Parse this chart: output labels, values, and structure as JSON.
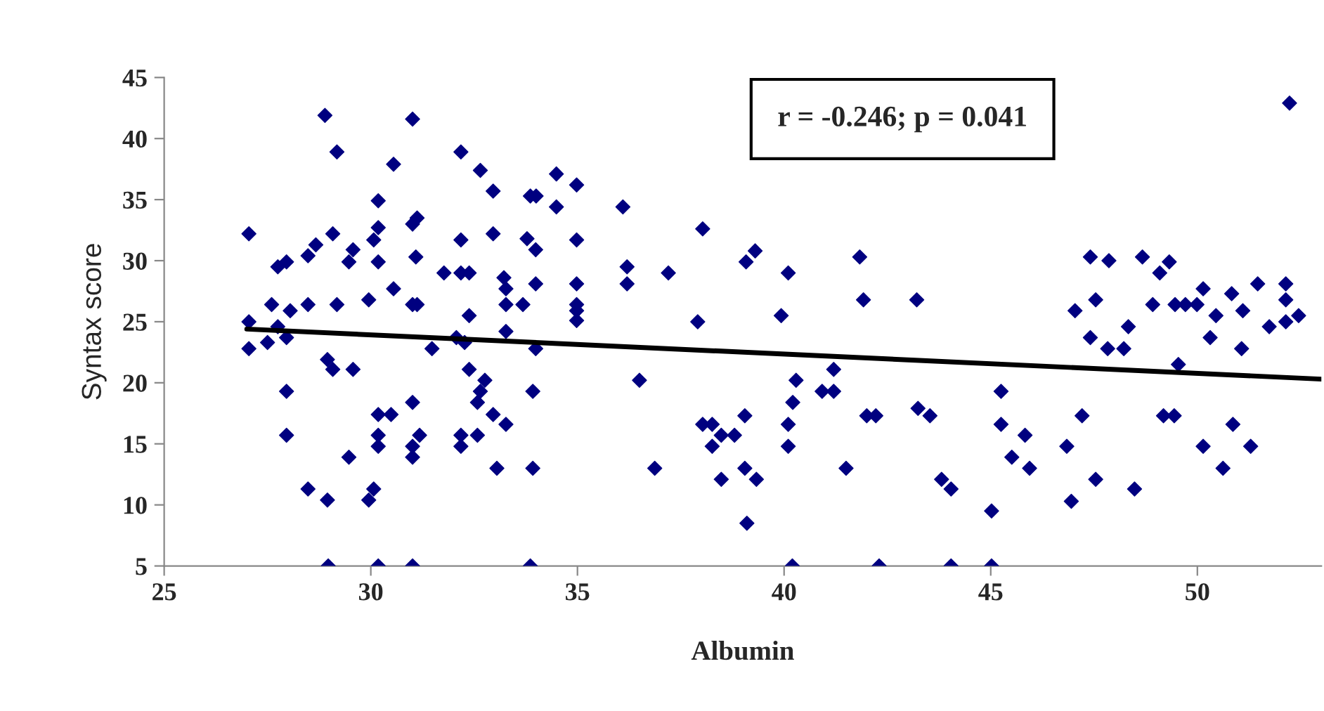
{
  "chart_data": {
    "type": "scatter",
    "xlabel": "Albumin",
    "ylabel": "Syntax score",
    "xlim": [
      25,
      53
    ],
    "xticks": [
      25,
      30,
      35,
      40,
      45,
      50
    ],
    "ylim": [
      5,
      45
    ],
    "yticks": [
      5,
      10,
      15,
      20,
      25,
      30,
      35,
      40,
      45
    ],
    "grid": false,
    "legend": false,
    "annotations": [
      "r = -0.246; p = 0.041"
    ],
    "series": [
      {
        "marker": "diamond",
        "color": "#000080",
        "x": [
          27.05,
          27.05,
          27.05,
          27.5,
          27.6,
          27.75,
          27.75,
          27.96,
          27.96,
          27.96,
          27.96,
          28.05,
          28.48,
          28.48,
          28.48,
          28.67,
          28.89,
          28.95,
          29.08,
          28.95,
          28.97,
          29.08,
          29.18,
          29.18,
          29.47,
          29.57,
          29.57,
          29.47,
          29.95,
          29.95,
          30.07,
          30.07,
          30.18,
          30.18,
          30.18,
          30.18,
          30.18,
          30.18,
          30.18,
          30.49,
          30.55,
          30.55,
          31.01,
          31.01,
          31.12,
          31.09,
          31.01,
          31.12,
          31.01,
          31.01,
          31.01,
          31.18,
          31.01,
          31.48,
          31.77,
          32.18,
          32.38,
          32.18,
          32.18,
          32.07,
          32.27,
          32.38,
          32.38,
          32.18,
          32.18,
          32.58,
          32.58,
          32.65,
          32.76,
          32.65,
          32.96,
          32.96,
          32.96,
          33.05,
          33.22,
          33.27,
          33.27,
          33.27,
          33.27,
          33.68,
          33.86,
          33.86,
          34.0,
          33.78,
          33.99,
          33.99,
          33.99,
          33.92,
          33.92,
          34.49,
          34.49,
          34.98,
          34.98,
          34.98,
          34.98,
          34.98,
          34.98,
          36.1,
          36.2,
          36.2,
          36.5,
          36.87,
          37.2,
          38.03,
          37.91,
          38.03,
          38.26,
          38.26,
          38.48,
          38.8,
          38.48,
          39.05,
          39.05,
          39.33,
          39.1,
          39.08,
          39.3,
          39.93,
          40.1,
          40.29,
          40.21,
          40.1,
          40.1,
          40.2,
          40.92,
          41.2,
          41.2,
          41.5,
          41.83,
          41.92,
          42.0,
          42.22,
          42.3,
          43.21,
          43.24,
          43.53,
          52.23,
          43.81,
          44.04,
          44.04,
          45.02,
          45.02,
          45.25,
          45.25,
          45.51,
          45.83,
          45.94,
          46.84,
          46.95,
          47.04,
          47.21,
          47.41,
          47.54,
          47.41,
          47.54,
          47.86,
          47.83,
          48.22,
          48.33,
          48.48,
          48.67,
          48.92,
          49.09,
          49.32,
          49.18,
          49.44,
          49.46,
          49.71,
          49.54,
          49.99,
          50.14,
          50.14,
          50.31,
          50.45,
          50.62,
          50.83,
          50.86,
          51.1,
          51.07,
          51.29,
          51.46,
          51.74,
          52.14,
          52.14,
          52.14,
          52.45
        ],
        "values": [
          32.2,
          25.0,
          22.8,
          23.3,
          26.4,
          24.6,
          29.5,
          29.9,
          23.7,
          19.3,
          15.7,
          25.9,
          26.4,
          30.4,
          11.3,
          31.3,
          41.9,
          21.9,
          21.1,
          10.4,
          5,
          32.2,
          38.9,
          26.4,
          29.9,
          30.9,
          21.1,
          13.9,
          26.8,
          10.4,
          11.3,
          31.7,
          32.7,
          34.9,
          29.9,
          17.4,
          15.7,
          14.8,
          5,
          17.4,
          27.7,
          37.9,
          41.6,
          33,
          33.5,
          30.3,
          26.4,
          26.4,
          18.4,
          14.8,
          13.9,
          15.7,
          5,
          22.8,
          29,
          29,
          29,
          31.7,
          38.9,
          23.7,
          23.3,
          25.5,
          21.1,
          15.7,
          14.8,
          15.7,
          18.4,
          19.3,
          20.2,
          37.4,
          35.7,
          32.2,
          17.4,
          13,
          28.6,
          27.7,
          26.4,
          24.2,
          16.6,
          26.4,
          35.3,
          5,
          35.3,
          31.8,
          30.9,
          28.1,
          22.8,
          19.3,
          13,
          37.1,
          34.4,
          36.2,
          31.7,
          28.1,
          26.4,
          25.9,
          25.1,
          34.4,
          29.5,
          28.1,
          20.2,
          13,
          29,
          32.6,
          25,
          16.6,
          16.6,
          14.8,
          15.7,
          15.7,
          12.1,
          17.3,
          13,
          12.1,
          8.5,
          29.9,
          30.8,
          25.5,
          29,
          20.2,
          18.4,
          16.6,
          14.8,
          5,
          19.3,
          19.3,
          21.1,
          13,
          30.3,
          26.8,
          17.3,
          17.3,
          5,
          26.8,
          17.9,
          17.3,
          42.9,
          12.1,
          11.3,
          5,
          9.5,
          5,
          19.3,
          16.6,
          13.9,
          15.7,
          13,
          14.8,
          10.3,
          25.9,
          17.3,
          30.3,
          26.8,
          23.7,
          12.1,
          30,
          22.8,
          22.8,
          24.6,
          11.3,
          30.3,
          26.4,
          29,
          29.9,
          17.3,
          17.3,
          26.4,
          26.4,
          21.5,
          26.4,
          27.7,
          14.8,
          23.7,
          25.5,
          13,
          27.3,
          16.6,
          25.9,
          22.8,
          14.8,
          28.1,
          24.6,
          28.1,
          26.8,
          25,
          25.5
        ]
      },
      {
        "type": "line",
        "marker": "none",
        "color": "#000000",
        "x": [
          27,
          53
        ],
        "values": [
          24.4,
          20.3
        ]
      }
    ]
  }
}
